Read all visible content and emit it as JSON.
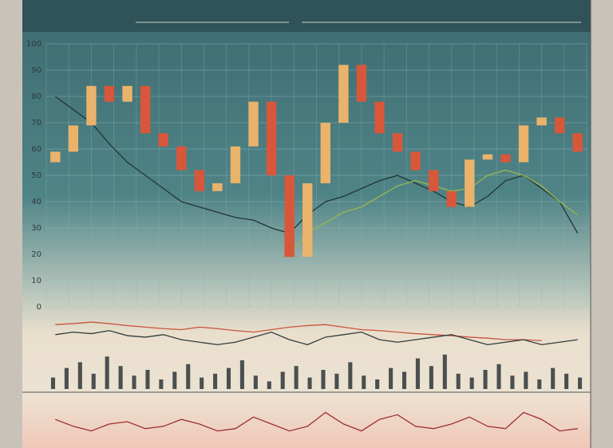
{
  "chart_data": [
    {
      "type": "candlestick",
      "open": [
        55,
        59,
        69,
        84,
        78,
        84,
        66,
        61,
        52,
        44,
        47,
        61,
        78,
        50,
        19,
        47,
        70,
        92,
        78,
        66,
        59,
        52,
        44,
        38,
        56,
        58,
        55,
        69,
        72,
        66
      ],
      "close": [
        59,
        69,
        84,
        78,
        84,
        66,
        61,
        52,
        44,
        47,
        61,
        78,
        50,
        19,
        47,
        70,
        92,
        78,
        66,
        59,
        52,
        44,
        38,
        56,
        58,
        55,
        69,
        72,
        66,
        59
      ],
      "up_color": "#e9b36c",
      "down_color": "#d8573a",
      "series": [
        {
          "color": "#243434",
          "values": [
            80,
            75,
            70,
            62,
            55,
            50,
            45,
            40,
            38,
            36,
            34,
            33,
            30,
            28,
            35,
            40,
            42,
            45,
            48,
            50,
            47,
            44,
            40,
            38,
            42,
            48,
            50,
            45,
            40,
            28
          ]
        },
        {
          "color": "#9bb84e",
          "values": [
            null,
            null,
            null,
            null,
            null,
            null,
            null,
            null,
            null,
            null,
            null,
            null,
            null,
            20,
            28,
            32,
            36,
            38,
            42,
            46,
            48,
            46,
            44,
            45,
            50,
            52,
            50,
            46,
            40,
            35
          ]
        }
      ],
      "ylim": [
        0,
        100
      ],
      "yticks": [
        0,
        10,
        20,
        30,
        40,
        50,
        60,
        70,
        80,
        90,
        100
      ],
      "grid": true
    },
    {
      "type": "line",
      "series": [
        {
          "color": "#c9553c",
          "values": [
            60,
            62,
            65,
            62,
            58,
            55,
            52,
            50,
            55,
            52,
            48,
            45,
            50,
            55,
            58,
            60,
            55,
            50,
            48,
            45,
            42,
            40,
            38,
            35,
            33,
            30,
            30,
            28,
            null,
            null
          ]
        },
        {
          "color": "#2f3d3d",
          "values": [
            40,
            45,
            42,
            48,
            38,
            35,
            40,
            30,
            25,
            20,
            25,
            35,
            45,
            30,
            20,
            35,
            40,
            45,
            30,
            25,
            30,
            35,
            40,
            30,
            20,
            25,
            30,
            20,
            25,
            30
          ]
        }
      ],
      "ylim": [
        0,
        100
      ]
    },
    {
      "type": "bar",
      "color": "#4a4f4f",
      "values": [
        30,
        55,
        70,
        40,
        85,
        60,
        35,
        50,
        25,
        45,
        65,
        30,
        40,
        55,
        75,
        35,
        20,
        45,
        60,
        30,
        50,
        40,
        70,
        35,
        25,
        55,
        45,
        80,
        60,
        90,
        40,
        30,
        50,
        65,
        35,
        45,
        25,
        55,
        40,
        30
      ],
      "ylim": [
        0,
        100
      ]
    },
    {
      "type": "line",
      "series": [
        {
          "color": "#9e2f2f",
          "values": [
            55,
            40,
            30,
            45,
            50,
            35,
            40,
            55,
            45,
            30,
            35,
            60,
            45,
            30,
            40,
            70,
            45,
            30,
            55,
            65,
            40,
            35,
            45,
            60,
            40,
            35,
            70,
            55,
            30,
            35
          ]
        }
      ],
      "ylim": [
        0,
        100
      ]
    }
  ]
}
